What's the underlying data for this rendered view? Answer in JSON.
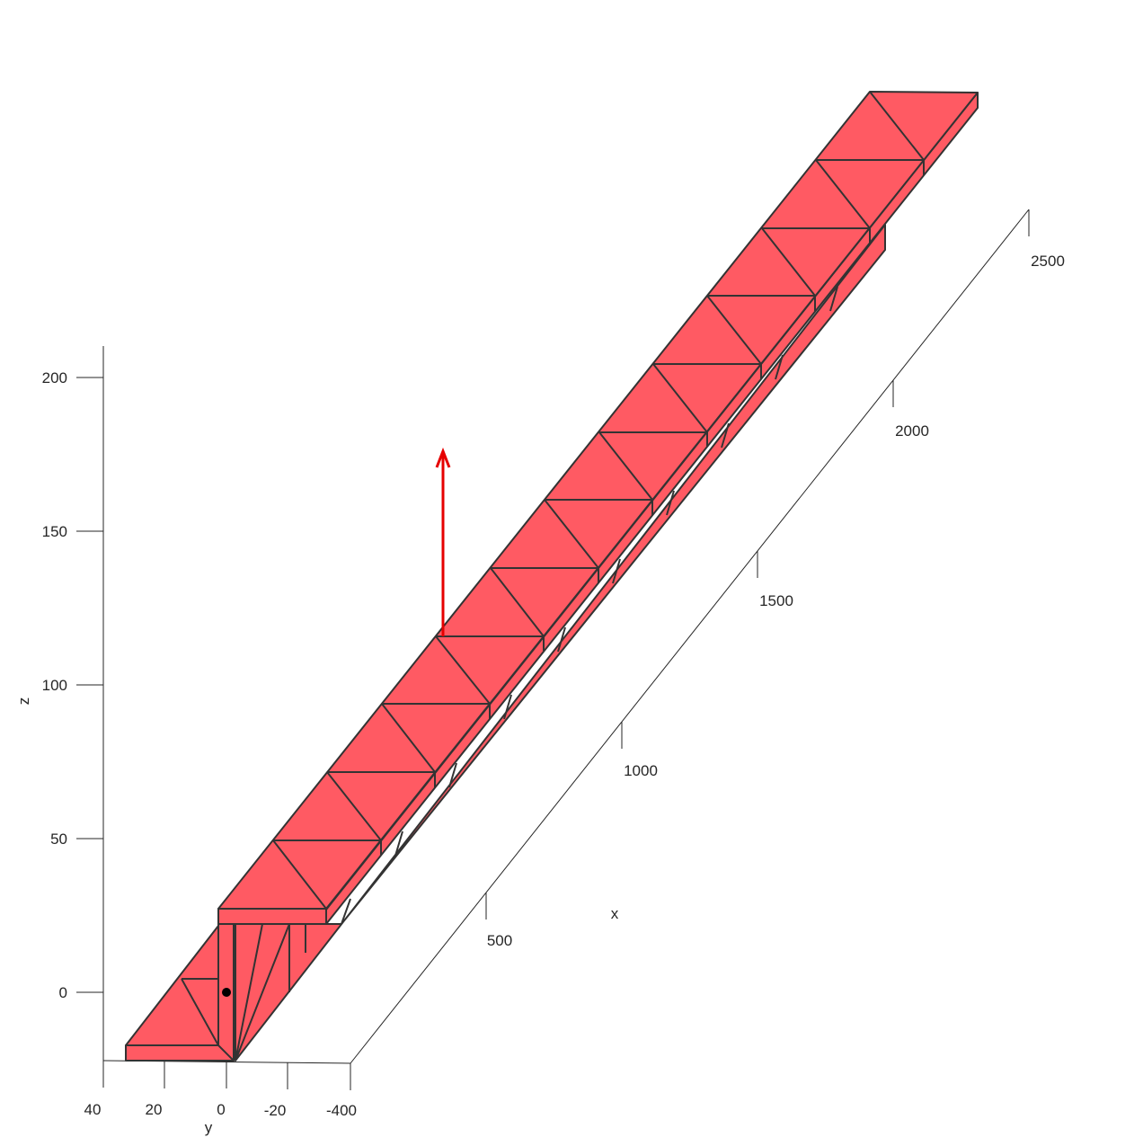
{
  "chart_data": {
    "type": "3d-surface",
    "title": "",
    "xlabel": "x",
    "ylabel": "y",
    "zlabel": "z",
    "x_ticks": [
      "500",
      "1000",
      "1500",
      "2000",
      "2500"
    ],
    "y_ticks": [
      "40",
      "20",
      "0",
      "-20",
      "-400"
    ],
    "z_ticks": [
      "0",
      "50",
      "100",
      "150",
      "200"
    ],
    "face_color": "#ff5a63",
    "edge_color": "#333333",
    "vector_color": "#e60000",
    "vector": {
      "z_start": 115,
      "z_end": 178
    },
    "point": {
      "x": 0,
      "y": 0,
      "z": 0
    }
  }
}
